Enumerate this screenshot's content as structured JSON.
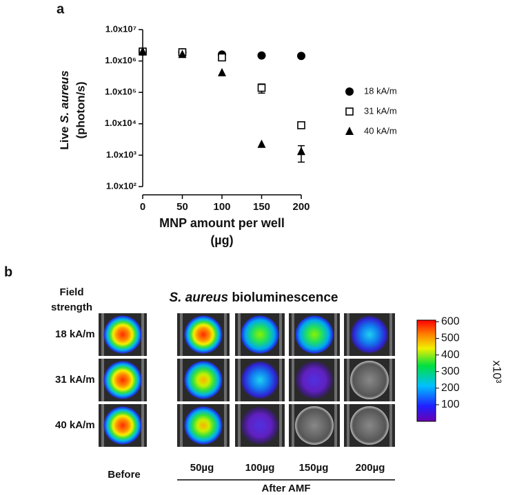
{
  "chart_data": [
    {
      "type": "scatter",
      "panel": "a",
      "ylabel": [
        "Live",
        "S. aureus",
        "(photon/s)"
      ],
      "xlabel": [
        "MNP amount per well",
        "(µg)"
      ],
      "x": [
        0,
        50,
        100,
        150,
        200
      ],
      "xlim": [
        0,
        200
      ],
      "xticks": [
        0,
        50,
        100,
        150,
        200
      ],
      "ylim": [
        100,
        10000000
      ],
      "yscale": "log",
      "yticks": [
        {
          "value": 100,
          "label": "1.0x10²"
        },
        {
          "value": 1000,
          "label": "1.0x10³"
        },
        {
          "value": 10000,
          "label": "1.0x10⁴"
        },
        {
          "value": 100000,
          "label": "1.0x10⁵"
        },
        {
          "value": 1000000,
          "label": "1.0x10⁶"
        },
        {
          "value": 10000000,
          "label": "1.0x10⁷"
        }
      ],
      "legend": "right",
      "series": [
        {
          "name": "18 kA/m",
          "marker": "circle",
          "color": "#000000",
          "values": [
            2000000,
            1900000,
            1600000,
            1500000,
            1450000
          ],
          "errors": [
            null,
            null,
            null,
            null,
            null
          ]
        },
        {
          "name": "31 kA/m",
          "marker": "open-square",
          "color": "#000000",
          "values": [
            2000000,
            1900000,
            1300000,
            140000,
            9000
          ],
          "errors": [
            null,
            null,
            null,
            45000,
            null
          ]
        },
        {
          "name": "40 kA/m",
          "marker": "triangle",
          "color": "#000000",
          "values": [
            2000000,
            1600000,
            420000,
            2200,
            1300
          ],
          "errors": [
            null,
            null,
            null,
            null,
            700
          ]
        }
      ]
    },
    {
      "type": "image-grid",
      "panel": "b",
      "title": [
        "S. aureus",
        "bioluminescence"
      ],
      "row_header": [
        "Field",
        "strength"
      ],
      "rows": [
        "18 kA/m",
        "31 kA/m",
        "40 kA/m"
      ],
      "columns": [
        "Before",
        "50µg",
        "100µg",
        "150µg",
        "200µg"
      ],
      "column_group": "After AMF",
      "colorbar": {
        "clim": [
          0,
          610
        ],
        "ticks": [
          100,
          200,
          300,
          400,
          500,
          600
        ],
        "label": "x10³"
      }
    }
  ]
}
